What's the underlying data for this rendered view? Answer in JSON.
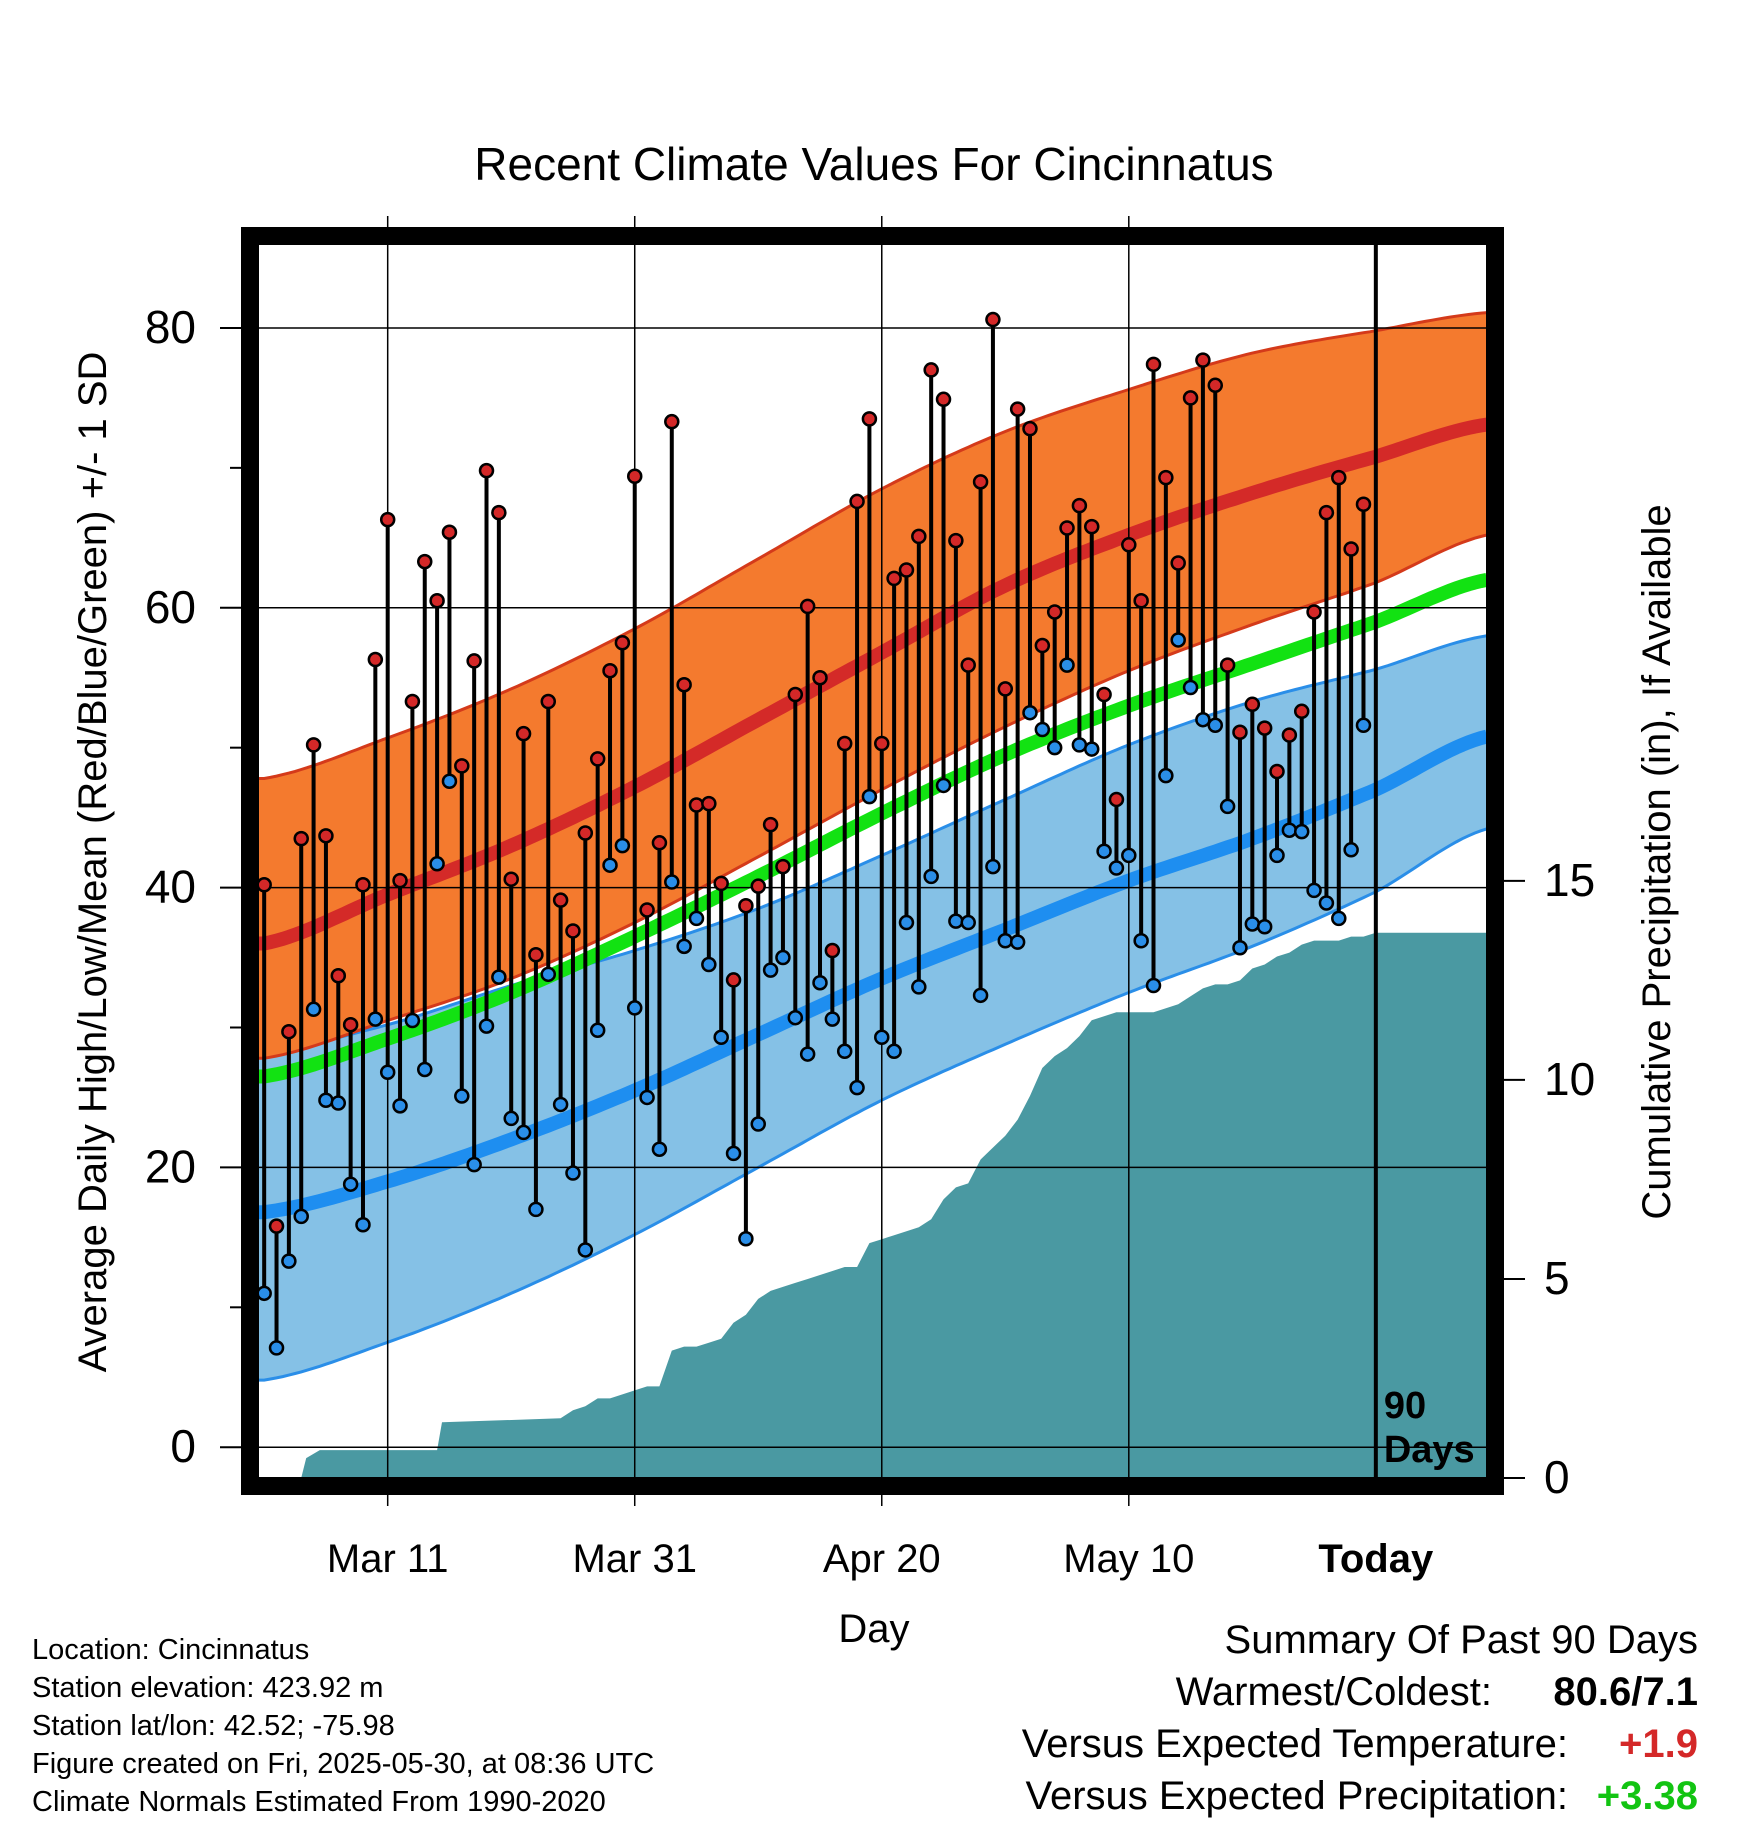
{
  "chart_data": {
    "type": "line",
    "title": "Recent Climate Values For Cincinnatus",
    "xlabel": "Day",
    "ylabel_left": "Average Daily High/Low/Mean (Red/Blue/Green) +/- 1 SD",
    "ylabel_right": "Cumulative Precipitation (in), If Available",
    "x_tick_labels": [
      "Mar 11",
      "Mar 31",
      "Apr 20",
      "May 10",
      "Today"
    ],
    "x_ticks_day": [
      10,
      30,
      50,
      70,
      90
    ],
    "xlim_day": [
      -0.5,
      99
    ],
    "ylim_left": [
      -2.2,
      86
    ],
    "y_ticks_left": [
      0,
      20,
      40,
      60,
      80
    ],
    "ylim_right": [
      0,
      31
    ],
    "y_ticks_right": [
      0,
      5,
      10,
      15
    ],
    "today_label": "90\nDays",
    "today_day": 90,
    "grid": true,
    "colors": {
      "high_band": "#f47a2e",
      "high_band_edge": "#d43a1a",
      "high_mean": "#d42a28",
      "low_band": "#85c1e6",
      "low_band_edge": "#2a8ee8",
      "low_mean": "#1e8ef0",
      "mean": "#12e212",
      "precip": "#4a99a2",
      "high_point": "#d42828",
      "low_point": "#2a8ee8"
    },
    "normals": {
      "days": [
        0,
        10,
        20,
        30,
        40,
        50,
        60,
        70,
        80,
        90,
        99
      ],
      "high_mean": [
        36,
        39.5,
        43,
        47.2,
        52,
        56.8,
        61.6,
        65.2,
        68.2,
        70.8,
        73.1
      ],
      "high_upper": [
        47.8,
        50.7,
        54.2,
        58.5,
        63.5,
        68.5,
        72.6,
        75.6,
        78.2,
        79.8,
        81.1
      ],
      "high_lower": [
        27.8,
        30.5,
        33.5,
        37.5,
        42.2,
        47,
        51.5,
        55.5,
        58.8,
        61.8,
        65.2
      ],
      "low_mean": [
        16.8,
        19,
        22,
        25.5,
        29.5,
        33.5,
        37,
        40.5,
        43.5,
        47,
        50.8
      ],
      "low_upper": [
        28.3,
        30.2,
        33,
        35.5,
        38.5,
        42.3,
        46.3,
        50.2,
        53.3,
        55.6,
        58
      ],
      "low_lower": [
        4.8,
        7.5,
        11,
        15.2,
        20,
        24.8,
        28.8,
        32.5,
        35.8,
        39.7,
        44.2
      ],
      "mean": [
        26.5,
        29.2,
        32.5,
        36.5,
        40.8,
        45.3,
        49.5,
        53,
        56,
        59,
        62
      ]
    },
    "series": [
      {
        "name": "High",
        "values": [
          40.2,
          15.8,
          29.7,
          43.5,
          50.2,
          43.7,
          33.7,
          30.2,
          40.2,
          56.3,
          66.3,
          40.5,
          53.3,
          63.3,
          60.5,
          65.4,
          48.7,
          56.2,
          69.8,
          66.8,
          40.6,
          51,
          35.2,
          53.3,
          39.1,
          36.9,
          43.9,
          49.2,
          55.5,
          57.5,
          69.4,
          38.4,
          43.2,
          73.3,
          54.5,
          45.9,
          46,
          40.3,
          33.4,
          38.7,
          40.1,
          44.5,
          41.5,
          53.8,
          60.1,
          55,
          35.5,
          50.3,
          67.6,
          73.5,
          50.3,
          62.1,
          62.7,
          65.1,
          77,
          74.9,
          64.8,
          55.9,
          69,
          80.6,
          54.2,
          74.2,
          72.8,
          57.3,
          59.7,
          65.7,
          67.3,
          65.8,
          53.8,
          46.3,
          64.5,
          60.5,
          77.4,
          69.3,
          63.2,
          75,
          77.7,
          75.9,
          55.9,
          51.1,
          53.1,
          51.4,
          48.3,
          50.9,
          52.6,
          59.7,
          66.8,
          69.3,
          64.2,
          67.4
        ]
      },
      {
        "name": "Low",
        "values": [
          11,
          7.1,
          13.3,
          16.5,
          31.3,
          24.8,
          24.6,
          18.8,
          15.9,
          30.6,
          26.8,
          24.4,
          30.5,
          27,
          41.7,
          47.6,
          25.1,
          20.2,
          30.1,
          33.6,
          23.5,
          22.5,
          17,
          33.8,
          24.5,
          19.6,
          14.1,
          29.8,
          41.6,
          43,
          31.4,
          25,
          21.3,
          40.4,
          35.8,
          37.8,
          34.5,
          29.3,
          21,
          14.9,
          23.1,
          34.1,
          35,
          30.7,
          28.1,
          33.2,
          30.6,
          28.3,
          25.7,
          46.5,
          29.3,
          28.3,
          37.5,
          32.9,
          40.8,
          47.3,
          37.6,
          37.5,
          32.3,
          41.5,
          36.2,
          36.1,
          52.5,
          51.3,
          50,
          55.9,
          50.2,
          49.9,
          42.6,
          41.4,
          42.3,
          36.2,
          33,
          48,
          57.7,
          54.3,
          52,
          51.6,
          45.8,
          35.7,
          37.4,
          37.2,
          42.3,
          44.1,
          44,
          39.8,
          38.9,
          37.8,
          42.7,
          51.6
        ]
      }
    ],
    "precip_cumulative": {
      "days": [
        0,
        3,
        3.4,
        4.5,
        14,
        14.4,
        24,
        25,
        26,
        27,
        28,
        29,
        30,
        31,
        32,
        33,
        34,
        35,
        36,
        37,
        38,
        39,
        40,
        41,
        42,
        43,
        44,
        45,
        46,
        47,
        48,
        49,
        50,
        51,
        52,
        53,
        54,
        55,
        56,
        57,
        58,
        59,
        60,
        61,
        62,
        63,
        64,
        65,
        66,
        67,
        68,
        69,
        70,
        71,
        72,
        73,
        74,
        75,
        76,
        77,
        78,
        79,
        80,
        81,
        82,
        83,
        84,
        85,
        86,
        87,
        88,
        89,
        90,
        99
      ],
      "values": [
        0,
        0,
        0.5,
        0.7,
        0.7,
        1.4,
        1.5,
        1.7,
        1.8,
        2,
        2,
        2.1,
        2.2,
        2.3,
        2.3,
        3.2,
        3.3,
        3.3,
        3.4,
        3.5,
        3.9,
        4.1,
        4.5,
        4.7,
        4.8,
        4.9,
        5,
        5.1,
        5.2,
        5.3,
        5.3,
        5.9,
        6,
        6.1,
        6.2,
        6.3,
        6.5,
        7,
        7.3,
        7.4,
        8,
        8.3,
        8.6,
        9,
        9.6,
        10.3,
        10.6,
        10.8,
        11.1,
        11.5,
        11.6,
        11.7,
        11.7,
        11.7,
        11.7,
        11.8,
        11.9,
        12.1,
        12.3,
        12.4,
        12.4,
        12.5,
        12.8,
        12.9,
        13.1,
        13.2,
        13.4,
        13.5,
        13.5,
        13.5,
        13.6,
        13.6,
        13.7,
        13.7
      ]
    }
  },
  "info": {
    "location": "Location: Cincinnatus",
    "elevation": "Station elevation: 423.92 m",
    "latlon": "Station lat/lon: 42.52; -75.98",
    "created": "Figure created on Fri, 2025-05-30, at 08:36 UTC",
    "normals": "Climate Normals Estimated From 1990-2020"
  },
  "summary": {
    "title": "Summary Of Past 90 Days",
    "warm_cold_label": "Warmest/Coldest:",
    "warm_cold_value": "80.6/7.1",
    "temp_label": "Versus Expected Temperature:",
    "temp_value": "+1.9",
    "temp_color": "#d42828",
    "precip_label": "Versus Expected Precipitation:",
    "precip_value": "+3.38",
    "precip_color": "#12c412"
  }
}
